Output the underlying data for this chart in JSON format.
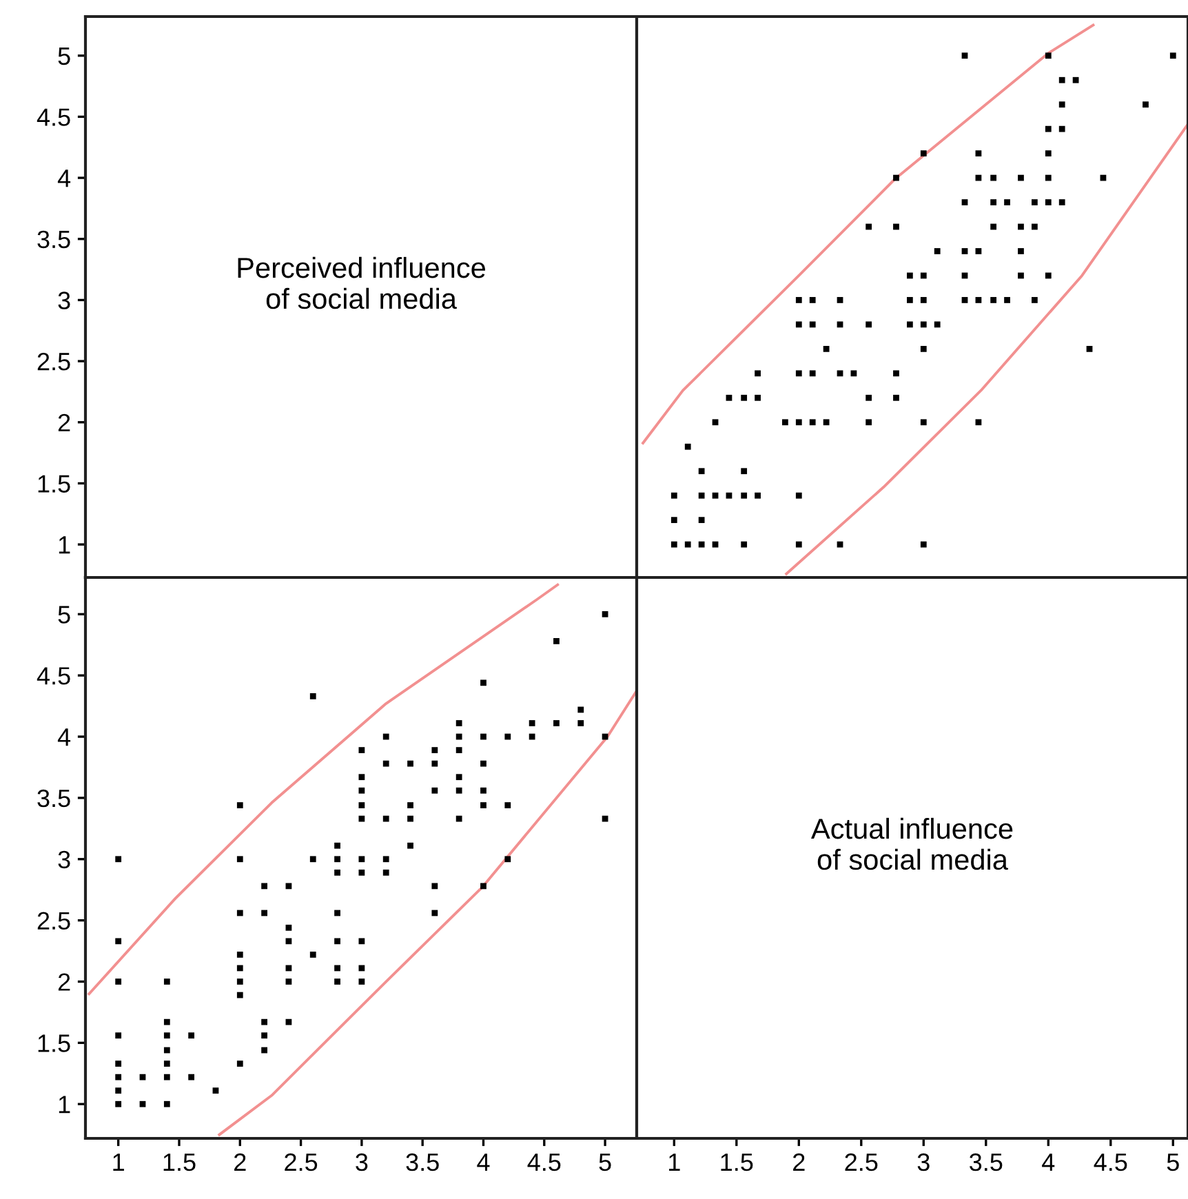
{
  "chart_data": [
    {
      "type": "scatter",
      "annotations": [
        "Perceived influence\nof social media"
      ],
      "xlim": [
        0.73,
        5.26
      ],
      "ylim": [
        0.73,
        5.32
      ],
      "yticks": [
        1,
        1.5,
        2,
        2.5,
        3,
        3.5,
        4,
        4.5,
        5
      ],
      "tick_labels": "y"
    },
    {
      "type": "scatter",
      "line_style": "solid",
      "xlim": [
        0.7,
        5.12
      ],
      "ylim": [
        0.73,
        5.32
      ],
      "tick_labels": false,
      "series": [
        {
          "type": "scatter",
          "marker": "square",
          "color": "#000000",
          "x": [
            3.33,
            4,
            5,
            4.11,
            4.22,
            4.11,
            4.78,
            4,
            4.11,
            3,
            3.44,
            4,
            2.78,
            3.44,
            3.56,
            3.78,
            4,
            4.44,
            3.33,
            3.56,
            3.67,
            3.89,
            4,
            4.11,
            2.56,
            2.78,
            3.56,
            3.78,
            3.89,
            3.11,
            3.33,
            3.44,
            3.78,
            2.89,
            3,
            3.33,
            3.78,
            4,
            2,
            2.11,
            2.33,
            2.89,
            3,
            3.33,
            3.44,
            3.56,
            3.67,
            3.89,
            2,
            2.11,
            2.33,
            2.56,
            2.89,
            3,
            3.11,
            2.22,
            3,
            4.33,
            1.67,
            2,
            2.11,
            2.33,
            2.44,
            2.78,
            1.44,
            1.56,
            1.67,
            2.56,
            2.78,
            1.33,
            1.89,
            2,
            2.11,
            2.22,
            2.56,
            3,
            3.44,
            1.11,
            1.22,
            1.56,
            1,
            1.22,
            1.33,
            1.44,
            1.56,
            1.67,
            2,
            1,
            1.22,
            1,
            1.11,
            1.22,
            1.33,
            1.56,
            2,
            2.33,
            3
          ],
          "values": [
            5,
            5,
            5,
            4.8,
            4.8,
            4.6,
            4.6,
            4.4,
            4.4,
            4.2,
            4.2,
            4.2,
            4,
            4,
            4,
            4,
            4,
            4,
            3.8,
            3.8,
            3.8,
            3.8,
            3.8,
            3.8,
            3.6,
            3.6,
            3.6,
            3.6,
            3.6,
            3.4,
            3.4,
            3.4,
            3.4,
            3.2,
            3.2,
            3.2,
            3.2,
            3.2,
            3,
            3,
            3,
            3,
            3,
            3,
            3,
            3,
            3,
            3,
            2.8,
            2.8,
            2.8,
            2.8,
            2.8,
            2.8,
            2.8,
            2.6,
            2.6,
            2.6,
            2.4,
            2.4,
            2.4,
            2.4,
            2.4,
            2.4,
            2.2,
            2.2,
            2.2,
            2.2,
            2.2,
            2,
            2,
            2,
            2,
            2,
            2,
            2,
            2,
            1.8,
            1.6,
            1.6,
            1.4,
            1.4,
            1.4,
            1.4,
            1.4,
            1.4,
            1.4,
            1.2,
            1.2,
            1,
            1,
            1,
            1,
            1,
            1,
            1,
            1
          ]
        },
        {
          "type": "line",
          "color": "#f29090",
          "x": [
            0.75,
            1.07,
            2.0,
            2.77,
            4.0,
            4.36
          ],
          "values": [
            1.83,
            2.26,
            3.2,
            3.99,
            5.02,
            5.25
          ]
        },
        {
          "type": "line",
          "color": "#f29090",
          "x": [
            1.9,
            2.68,
            3.46,
            4.27,
            5.12
          ],
          "values": [
            0.76,
            1.47,
            2.26,
            3.2,
            4.44
          ]
        }
      ]
    },
    {
      "type": "scatter",
      "line_style": "solid",
      "xlim": [
        0.73,
        5.26
      ],
      "ylim": [
        0.72,
        5.3
      ],
      "xticks": [
        1,
        1.5,
        2,
        2.5,
        3,
        3.5,
        4,
        4.5,
        5
      ],
      "yticks": [
        1,
        1.5,
        2,
        2.5,
        3,
        3.5,
        4,
        4.5,
        5
      ],
      "series": [
        {
          "type": "scatter",
          "marker": "square",
          "color": "#000000",
          "x": [
            5,
            5,
            5,
            4.8,
            4.8,
            4.6,
            4.6,
            4.4,
            4.4,
            4.2,
            4.2,
            4.2,
            4,
            4,
            4,
            4,
            4,
            4,
            3.8,
            3.8,
            3.8,
            3.8,
            3.8,
            3.8,
            3.6,
            3.6,
            3.6,
            3.6,
            3.6,
            3.4,
            3.4,
            3.4,
            3.4,
            3.2,
            3.2,
            3.2,
            3.2,
            3.2,
            3,
            3,
            3,
            3,
            3,
            3,
            3,
            3,
            3,
            3,
            2.8,
            2.8,
            2.8,
            2.8,
            2.8,
            2.8,
            2.8,
            2.6,
            2.6,
            2.6,
            2.4,
            2.4,
            2.4,
            2.4,
            2.4,
            2.4,
            2.2,
            2.2,
            2.2,
            2.2,
            2.2,
            2,
            2,
            2,
            2,
            2,
            2,
            2,
            2,
            1.8,
            1.6,
            1.6,
            1.4,
            1.4,
            1.4,
            1.4,
            1.4,
            1.4,
            1.4,
            1.2,
            1.2,
            1,
            1,
            1,
            1,
            1,
            1,
            1,
            1
          ],
          "values": [
            3.33,
            4,
            5,
            4.11,
            4.22,
            4.11,
            4.78,
            4,
            4.11,
            3,
            3.44,
            4,
            2.78,
            3.44,
            3.56,
            3.78,
            4,
            4.44,
            3.33,
            3.56,
            3.67,
            3.89,
            4,
            4.11,
            2.56,
            2.78,
            3.56,
            3.78,
            3.89,
            3.11,
            3.33,
            3.44,
            3.78,
            2.89,
            3,
            3.33,
            3.78,
            4,
            2,
            2.11,
            2.33,
            2.89,
            3,
            3.33,
            3.44,
            3.56,
            3.67,
            3.89,
            2,
            2.11,
            2.33,
            2.56,
            2.89,
            3,
            3.11,
            2.22,
            3,
            4.33,
            1.67,
            2,
            2.11,
            2.33,
            2.44,
            2.78,
            1.44,
            1.56,
            1.67,
            2.56,
            2.78,
            1.33,
            1.89,
            2,
            2.11,
            2.22,
            2.56,
            3,
            3.44,
            1.11,
            1.22,
            1.56,
            1,
            1.22,
            1.33,
            1.44,
            1.56,
            1.67,
            2,
            1,
            1.22,
            1,
            1.11,
            1.22,
            1.33,
            1.56,
            2,
            2.33,
            3
          ]
        },
        {
          "type": "line",
          "color": "#f29090",
          "x": [
            0.76,
            1.47,
            2.26,
            3.2,
            4.44,
            4.61
          ],
          "values": [
            1.9,
            2.68,
            3.46,
            4.27,
            5.12,
            5.24
          ]
        },
        {
          "type": "line",
          "color": "#f29090",
          "x": [
            1.83,
            2.26,
            3.2,
            3.99,
            5.02,
            5.25
          ],
          "values": [
            0.75,
            1.07,
            2.0,
            2.77,
            4.0,
            4.36
          ]
        }
      ]
    },
    {
      "type": "scatter",
      "annotations": [
        "Actual influence\nof social media"
      ],
      "xlim": [
        0.7,
        5.12
      ],
      "ylim": [
        0.72,
        5.3
      ],
      "xticks": [
        1,
        1.5,
        2,
        2.5,
        3,
        3.5,
        4,
        4.5,
        5
      ],
      "tick_labels": "x"
    }
  ]
}
